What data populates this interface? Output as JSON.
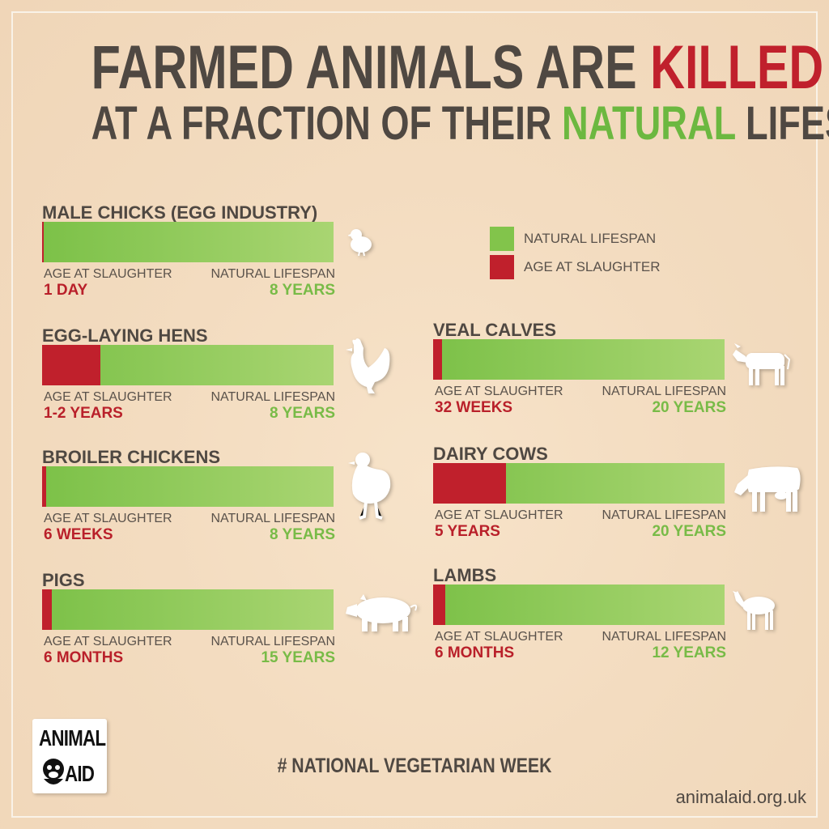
{
  "title": {
    "line1_prefix": "FARMED ANIMALS ARE",
    "line1_highlight": "KILLED",
    "line2_prefix": "AT A FRACTION OF THEIR",
    "line2_highlight": "NATURAL",
    "line2_suffix": "LIFESPANS"
  },
  "legend": {
    "natural": "NATURAL LIFESPAN",
    "slaughter": "AGE AT SLAUGHTER"
  },
  "colors": {
    "slaughter": "#c0202c",
    "natural": "#7cc148",
    "natural_light": "#a9d572"
  },
  "chart_data": {
    "type": "bar",
    "bar_label_left": "AGE AT SLAUGHTER",
    "bar_label_right": "NATURAL LIFESPAN",
    "panels": [
      {
        "title": "MALE CHICKS (EGG INDUSTRY)",
        "slaughter_text": "1 DAY",
        "natural_text": "8 YEARS",
        "fraction": 0.005,
        "icon": "chick-icon"
      },
      {
        "title": "EGG-LAYING HENS",
        "slaughter_text": "1-2 YEARS",
        "natural_text": "8 YEARS",
        "fraction": 0.2,
        "icon": "hen-icon"
      },
      {
        "title": "BROILER CHICKENS",
        "slaughter_text": "6 WEEKS",
        "natural_text": "8 YEARS",
        "fraction": 0.015,
        "icon": "broiler-chicken-icon"
      },
      {
        "title": "PIGS",
        "slaughter_text": "6 MONTHS",
        "natural_text": "15 YEARS",
        "fraction": 0.033,
        "icon": "pig-icon"
      },
      {
        "title": "VEAL CALVES",
        "slaughter_text": "32 WEEKS",
        "natural_text": "20 YEARS",
        "fraction": 0.031,
        "icon": "calf-icon"
      },
      {
        "title": "DAIRY COWS",
        "slaughter_text": "5 YEARS",
        "natural_text": "20 YEARS",
        "fraction": 0.25,
        "icon": "cow-icon"
      },
      {
        "title": "LAMBS",
        "slaughter_text": "6 MONTHS",
        "natural_text": "12 YEARS",
        "fraction": 0.042,
        "icon": "lamb-icon"
      }
    ]
  },
  "footer": {
    "logo_line1": "ANIMAL",
    "logo_line2": "AID",
    "hashtag": "# NATIONAL VEGETARIAN WEEK",
    "website": "animalaid.org.uk"
  }
}
